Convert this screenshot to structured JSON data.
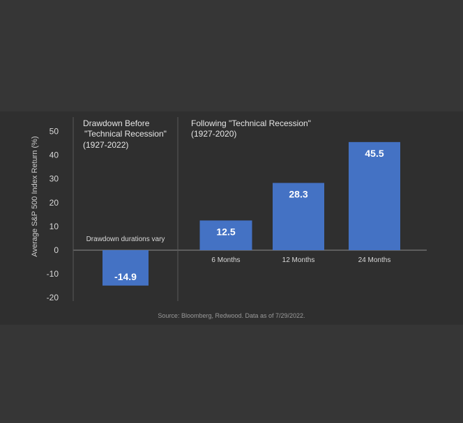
{
  "chart_data": {
    "type": "bar",
    "categories": [
      "Drawdown durations vary",
      "6 Months",
      "12 Months",
      "24 Months"
    ],
    "values": [
      -14.9,
      12.5,
      28.3,
      45.5
    ],
    "value_labels": [
      "-14.9",
      "12.5",
      "28.3",
      "45.5"
    ],
    "ylabel": "Average S&P 500 Index Return (%)",
    "ylim": [
      -20,
      50
    ],
    "yticks": [
      50,
      40,
      30,
      20,
      10,
      0,
      -10,
      -20
    ],
    "grid": false,
    "bar_color": "#4472C4",
    "panels": {
      "left": {
        "title_line1": "Drawdown Before",
        "title_line2": "\"Technical Recession\"",
        "title_line3": "(1927-2022)"
      },
      "right": {
        "title_line1": "Following \"Technical Recession\"",
        "title_line2": "(1927-2020)"
      }
    },
    "source": "Source: Bloomberg, Redwood. Data as of 7/29/2022."
  },
  "colors": {
    "background": "#363636",
    "panel": "#2f2f2f",
    "text": "#d9d9d9",
    "axis": "#8c8c8c"
  }
}
